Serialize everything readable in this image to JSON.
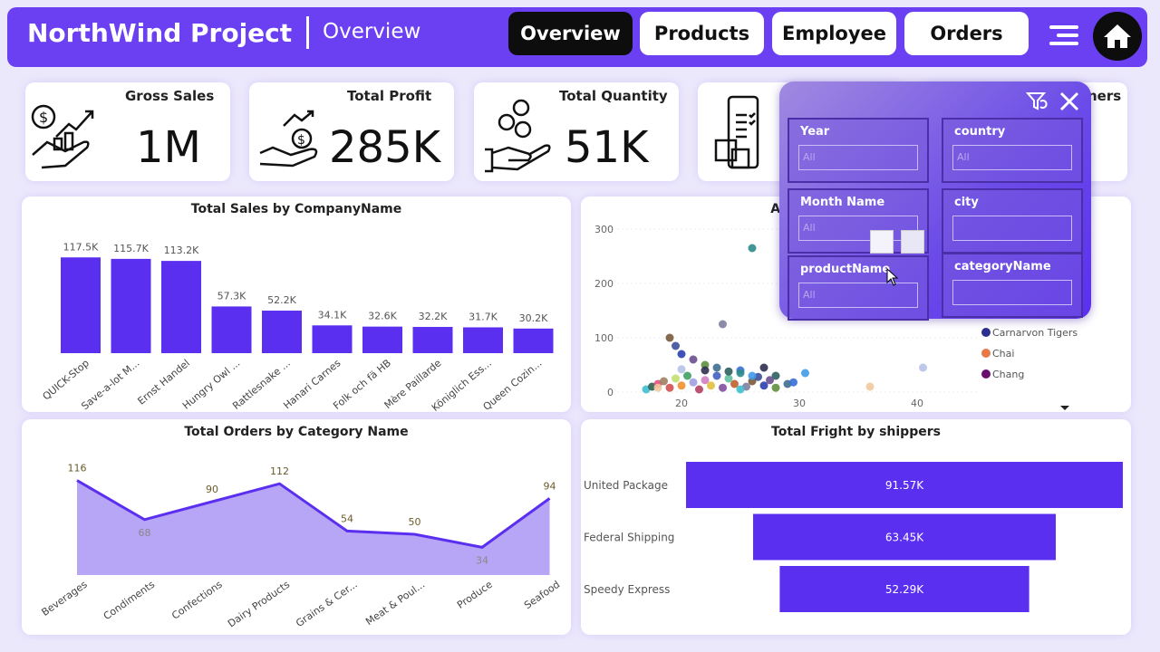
{
  "header": {
    "title": "NorthWind Project",
    "subtitle": "Overview",
    "tabs": [
      "Overview",
      "Products",
      "Employee",
      "Orders"
    ],
    "active_tab": "Overview",
    "accent": "#6b3ff2"
  },
  "kpis": [
    {
      "title": "Gross Sales",
      "value": "1M",
      "icon": "dollar-hand-growth-icon"
    },
    {
      "title": "Total Profit",
      "value": "285K",
      "icon": "hand-coin-growth-icon"
    },
    {
      "title": "Total Quantity",
      "value": "51K",
      "icon": "hand-coins-icon"
    },
    {
      "title": "",
      "value": "",
      "icon": "phone-checklist-box-icon"
    },
    {
      "title": "ners",
      "value": ""
    }
  ],
  "filters": {
    "slicers": [
      {
        "label": "Year",
        "value": "All"
      },
      {
        "label": "country",
        "value": "All"
      },
      {
        "label": "Month Name",
        "value": "All"
      },
      {
        "label": "city",
        "value": ""
      },
      {
        "label": "productName",
        "value": "All"
      },
      {
        "label": "categoryName",
        "value": ""
      }
    ]
  },
  "chart_data": [
    {
      "type": "bar",
      "title": "Total Sales by CompanyName",
      "categories": [
        "QUICK-Stop",
        "Save-a-lot M...",
        "Ernst Handel",
        "Hungry Owl ...",
        "Rattlesnake ...",
        "Hanari Carnes",
        "Folk och fä HB",
        "Mère Paillarde",
        "Königlich Ess...",
        "Queen Cozin..."
      ],
      "values": [
        117.5,
        115.7,
        113.2,
        57.3,
        52.2,
        34.1,
        32.6,
        32.2,
        31.7,
        30.2
      ],
      "labels": [
        "117.5K",
        "115.7K",
        "113.2K",
        "57.3K",
        "52.2K",
        "34.1K",
        "32.6K",
        "32.2K",
        "31.7K",
        "30.2K"
      ],
      "unit": "K",
      "color": "#5b2ff0"
    },
    {
      "type": "scatter",
      "title": "AVG Qua",
      "yticks": [
        "0",
        "100",
        "200",
        "300"
      ],
      "xticks": [
        "20",
        "30",
        "40"
      ],
      "legend": [
        {
          "name": "Carnarvon Tigers",
          "color": "#2b2f8f"
        },
        {
          "name": "Chai",
          "color": "#e8784a"
        },
        {
          "name": "Chang",
          "color": "#6a0f6f"
        }
      ],
      "points": [
        [
          26,
          265
        ],
        [
          23.5,
          125
        ],
        [
          19,
          100
        ],
        [
          19.5,
          85
        ],
        [
          20,
          70
        ],
        [
          21,
          60
        ],
        [
          22,
          50
        ],
        [
          23,
          45
        ],
        [
          25,
          40
        ],
        [
          27,
          45
        ],
        [
          28,
          30
        ],
        [
          30.5,
          35
        ],
        [
          40.5,
          45
        ],
        [
          36,
          10
        ],
        [
          17,
          5
        ],
        [
          17.5,
          10
        ],
        [
          18,
          15
        ],
        [
          18.5,
          20
        ],
        [
          19,
          8
        ],
        [
          19.5,
          25
        ],
        [
          20,
          12
        ],
        [
          20.5,
          30
        ],
        [
          21,
          18
        ],
        [
          21.5,
          5
        ],
        [
          22,
          22
        ],
        [
          22.5,
          12
        ],
        [
          23,
          30
        ],
        [
          23.5,
          8
        ],
        [
          24,
          25
        ],
        [
          24.5,
          15
        ],
        [
          25,
          35
        ],
        [
          25.5,
          10
        ],
        [
          26,
          20
        ],
        [
          26.5,
          28
        ],
        [
          27,
          12
        ],
        [
          27.5,
          22
        ],
        [
          28,
          8
        ],
        [
          29,
          15
        ],
        [
          29.5,
          18
        ],
        [
          22,
          40
        ],
        [
          24,
          38
        ],
        [
          26,
          30
        ],
        [
          20,
          42
        ],
        [
          18,
          8
        ],
        [
          25,
          5
        ]
      ],
      "colors": [
        "#2e8b8b",
        "#7f7f9f",
        "#7a5a3a",
        "#3c4f9a",
        "#2b3fb0",
        "#6b4f8f",
        "#5f8f3f",
        "#3f6f8f",
        "#3a6fd8",
        "#2f2f4f",
        "#2f5f5f",
        "#3f9be8",
        "#b7c2e8",
        "#f0c8a0",
        "#3fbfcf",
        "#2f5f4f",
        "#e05080",
        "#9f7f5f",
        "#d05050",
        "#c0e070",
        "#f09030",
        "#40a060",
        "#a0a0e0",
        "#b04060",
        "#d080c0",
        "#e0c040",
        "#4060c0",
        "#8050a0",
        "#60c0a0",
        "#c06030"
      ],
      "xlim": [
        15,
        45
      ],
      "ylim": [
        0,
        300
      ]
    },
    {
      "type": "area",
      "title": "Total Orders by Category Name",
      "categories": [
        "Beverages",
        "Condiments",
        "Confections",
        "Dairy Products",
        "Grains & Cer...",
        "Meat & Poul...",
        "Produce",
        "Seafood"
      ],
      "values": [
        116,
        68,
        90,
        112,
        54,
        50,
        34,
        94
      ],
      "color": "#5b2ff0",
      "fill": "#b6a6f5"
    },
    {
      "type": "funnel",
      "title": "Total Fright by shippers",
      "categories": [
        "United Package",
        "Federal Shipping",
        "Speedy Express"
      ],
      "values": [
        91.57,
        63.45,
        52.29
      ],
      "labels": [
        "91.57K",
        "63.45K",
        "52.29K"
      ],
      "color": "#5b2ff0"
    }
  ]
}
